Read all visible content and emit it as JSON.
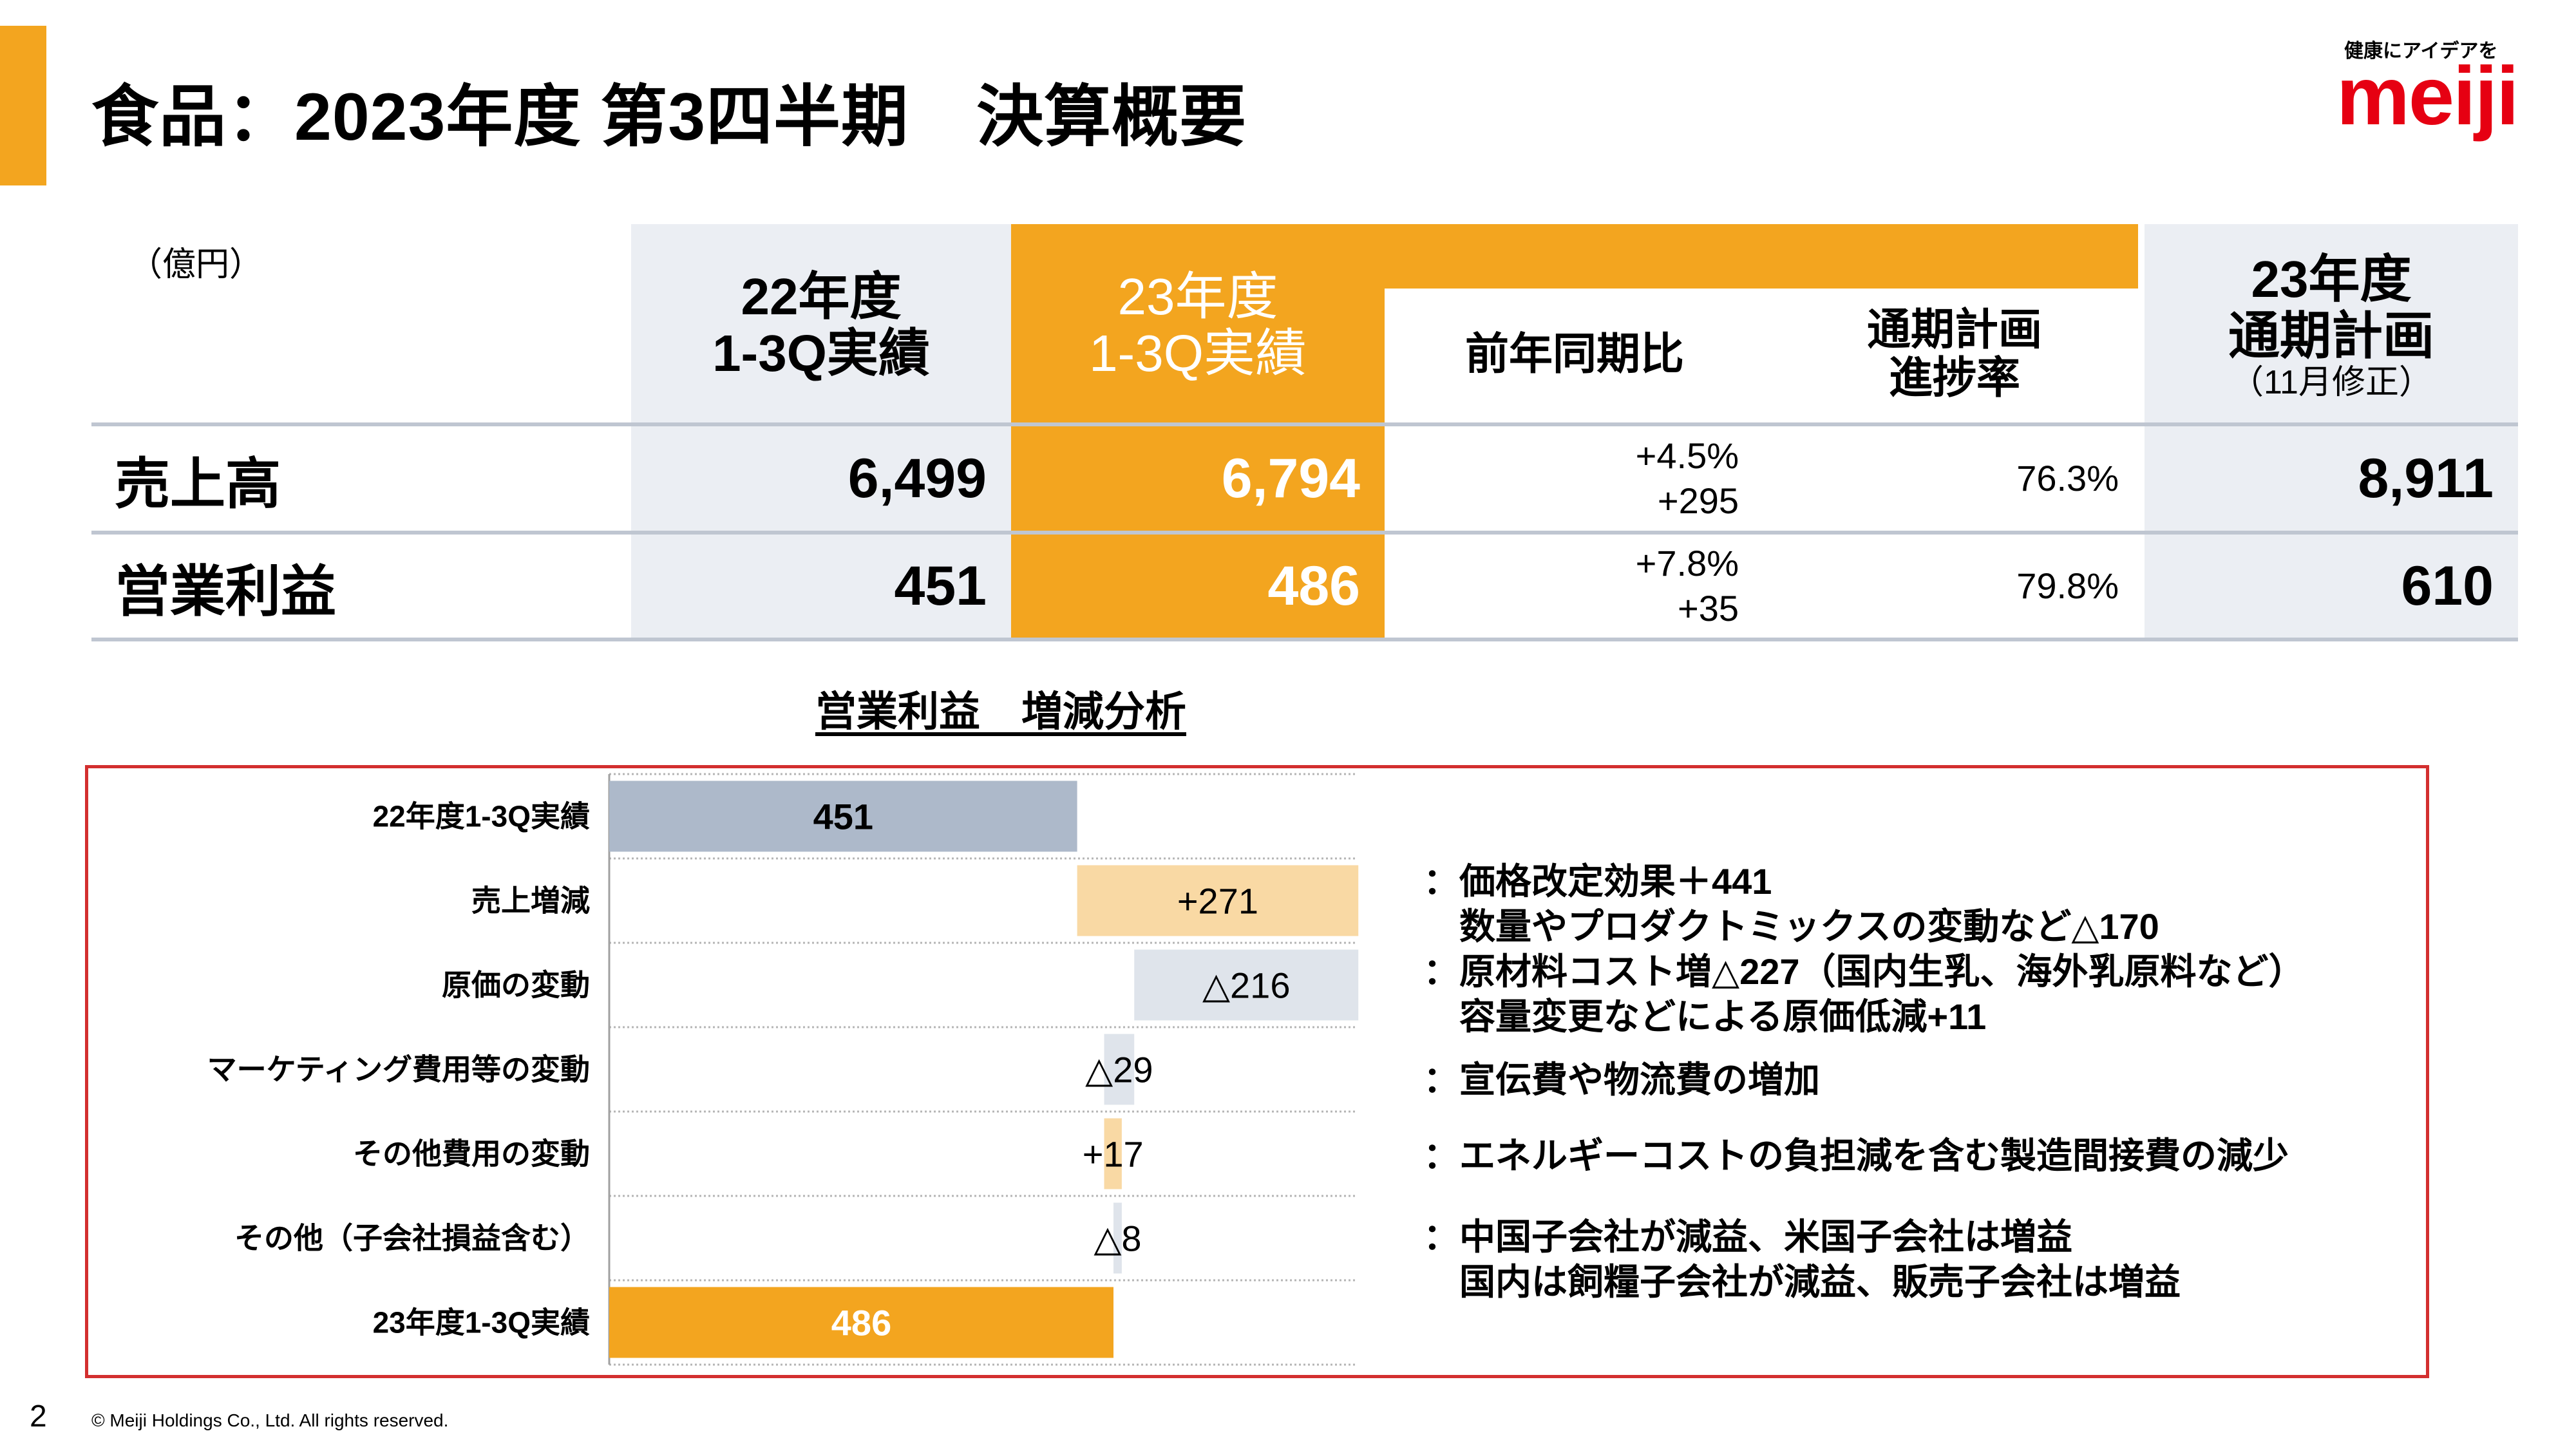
{
  "header": {
    "title": "食品：2023年度 第3四半期　決算概要",
    "tagline": "健康にアイデアを",
    "logo_text": "meiji",
    "accent_color": "#F3A51F",
    "logo_color": "#E60012"
  },
  "table": {
    "unit": "（億円）",
    "columns": {
      "prev_line1": "22年度",
      "prev_line2": "1-3Q実績",
      "curr_line1": "23年度",
      "curr_line2": "1-3Q実績",
      "yoy": "前年同期比",
      "progress_line1": "通期計画",
      "progress_line2": "進捗率",
      "plan_line1": "23年度",
      "plan_line2": "通期計画",
      "plan_line3": "（11月修正）"
    },
    "rows": [
      {
        "label": "売上高",
        "prev": "6,499",
        "curr": "6,794",
        "yoy_pct": "+4.5%",
        "yoy_abs": "+295",
        "progress": "76.3%",
        "plan": "8,911"
      },
      {
        "label": "営業利益",
        "prev": "451",
        "curr": "486",
        "yoy_pct": "+7.8%",
        "yoy_abs": "+35",
        "progress": "79.8%",
        "plan": "610"
      }
    ]
  },
  "chart_title": "営業利益　増減分析",
  "chart_data": {
    "type": "bar",
    "subtype": "waterfall",
    "categories": [
      "22年度1-3Q実績",
      "売上増減",
      "原価の変動",
      "マーケティング費用等の変動",
      "その他費用の変動",
      "その他（子会社損益含む）",
      "23年度1-3Q実績"
    ],
    "values": [
      451,
      271,
      -216,
      -29,
      17,
      -8,
      486
    ],
    "data_labels": [
      "451",
      "+271",
      "△216",
      "△29",
      "+17",
      "△8",
      "486"
    ],
    "bar_roles": [
      "total",
      "increase",
      "decrease",
      "decrease",
      "increase",
      "decrease",
      "total"
    ],
    "colors": {
      "start": "#ADB9CA",
      "increase": "#F9D9A4",
      "decrease": "#DFE4EB",
      "end": "#F3A51F"
    },
    "grid": true,
    "legend": "none"
  },
  "notes": [
    {
      "line1": "：価格改定効果＋441",
      "line2": "　数量やプロダクトミックスの変動など△170"
    },
    {
      "line1": "：原材料コスト増△227（国内生乳、海外乳原料など）",
      "line2": "　容量変更などによる原価低減+11"
    },
    {
      "line1": "：宣伝費や物流費の増加",
      "line2": ""
    },
    {
      "line1": "：エネルギーコストの負担減を含む製造間接費の減少",
      "line2": ""
    },
    {
      "line1": "：中国子会社が減益、米国子会社は増益",
      "line2": "　国内は飼糧子会社が減益、販売子会社は増益"
    }
  ],
  "footer": {
    "page": "2",
    "copyright": "© Meiji Holdings Co., Ltd. All rights reserved."
  }
}
